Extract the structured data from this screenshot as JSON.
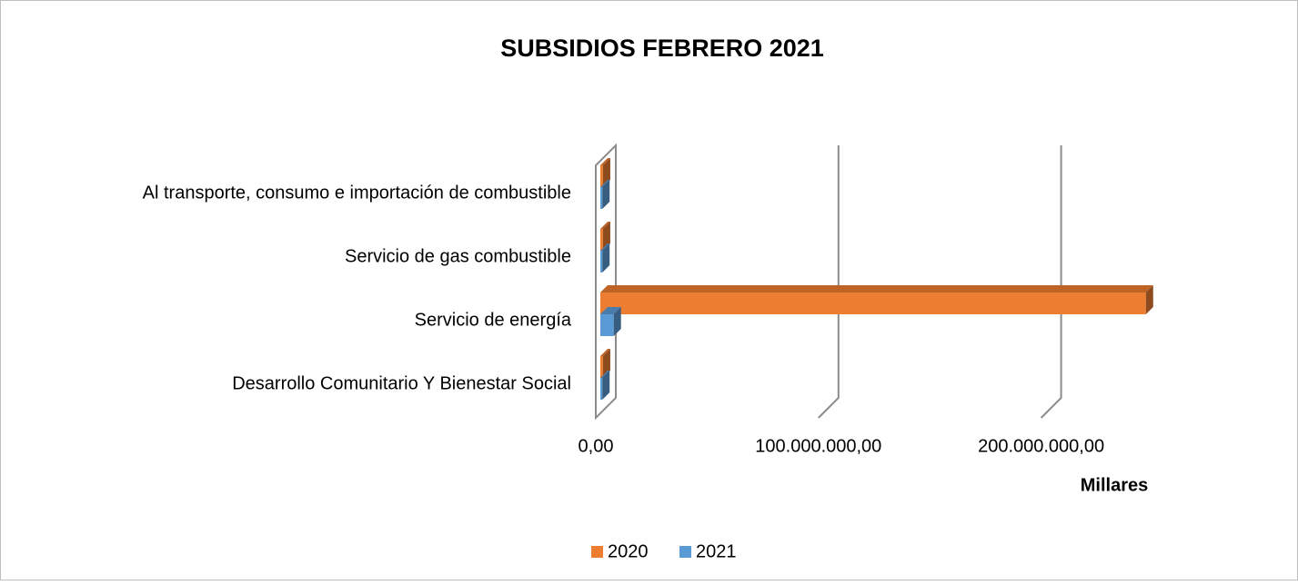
{
  "chart_data": {
    "type": "bar3d-horizontal",
    "title": "SUBSIDIOS FEBRERO 2021",
    "categories": [
      "Al transporte, consumo e importación de combustible",
      "Servicio de gas combustible",
      "Servicio de energía",
      "Desarrollo Comunitario Y Bienestar Social"
    ],
    "series": [
      {
        "name": "2020",
        "color": "#ed7d31",
        "values": [
          1200000,
          1200000,
          245000000,
          1200000
        ]
      },
      {
        "name": "2021",
        "color": "#5b9bd5",
        "values": [
          900000,
          900000,
          6000000,
          900000
        ]
      }
    ],
    "xlim": [
      0,
      250000000
    ],
    "xticks": [
      {
        "value": 0,
        "label": "0,00"
      },
      {
        "value": 100000000,
        "label": "100.000.000,00"
      },
      {
        "value": 200000000,
        "label": "200.000.000,00"
      }
    ],
    "xlabel": "Millares",
    "grid": true,
    "legend": "bottom"
  }
}
